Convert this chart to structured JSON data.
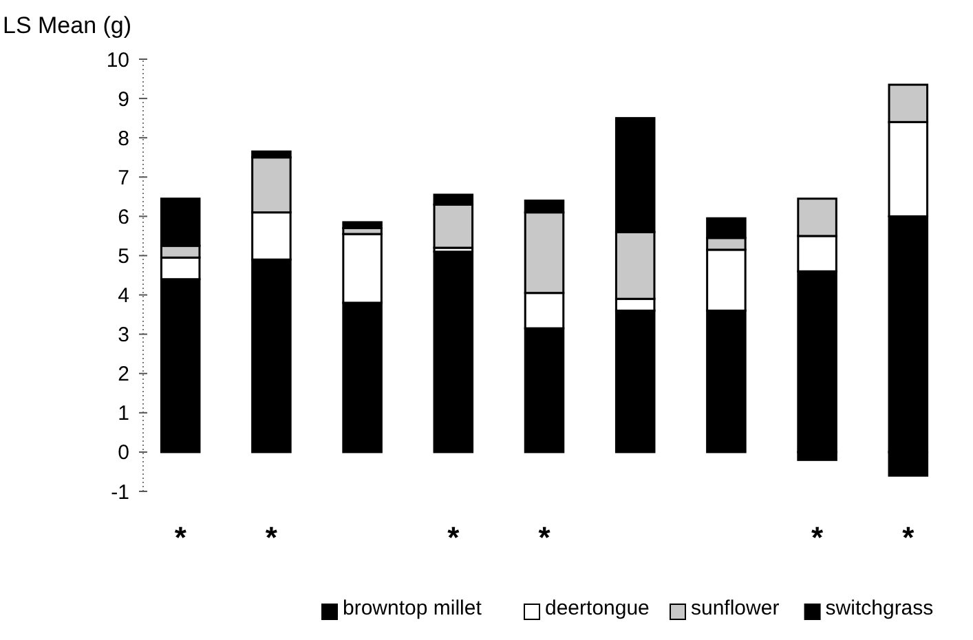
{
  "chart_data": {
    "type": "bar",
    "stacked": true,
    "ylabel": "LS Mean (g)",
    "categories": [
      "*",
      "*",
      null,
      "*",
      "*",
      null,
      null,
      "*",
      "*"
    ],
    "series": [
      {
        "name": "browntop millet",
        "color": "#000000",
        "values": [
          4.4,
          4.9,
          3.8,
          5.1,
          3.15,
          3.6,
          3.6,
          4.6,
          6.0
        ]
      },
      {
        "name": "deertongue",
        "color": "#ffffff",
        "values": [
          0.55,
          1.2,
          1.75,
          0.1,
          0.9,
          0.3,
          1.55,
          0.9,
          2.4
        ]
      },
      {
        "name": "sunflower",
        "color": "#c8c8c8",
        "values": [
          0.3,
          1.4,
          0.15,
          1.1,
          2.05,
          1.7,
          0.3,
          0.95,
          0.95
        ]
      },
      {
        "name": "switchgrass",
        "color": "#000000",
        "values": [
          1.2,
          0.15,
          0.15,
          0.25,
          0.3,
          2.9,
          0.5,
          -0.2,
          -0.6
        ]
      }
    ],
    "ylim": [
      -1,
      10
    ],
    "yticks": [
      -1,
      0,
      1,
      2,
      3,
      4,
      5,
      6,
      7,
      8,
      9,
      10
    ],
    "grid": false,
    "legend": "bottom"
  }
}
